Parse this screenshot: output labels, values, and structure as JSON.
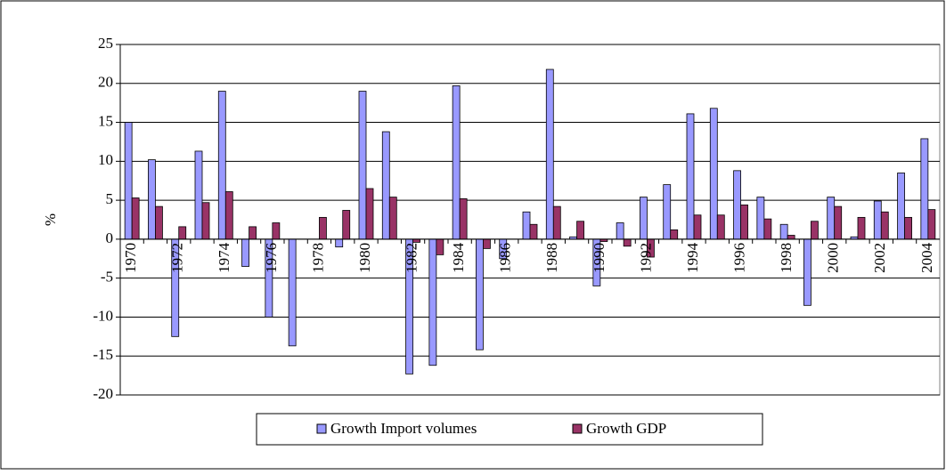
{
  "chart_data": {
    "type": "bar",
    "y_label": "%",
    "categories": [
      "1970",
      null,
      "1972",
      null,
      "1974",
      null,
      "1976",
      null,
      "1978",
      null,
      "1980",
      null,
      "1982",
      null,
      "1984",
      null,
      "1986",
      null,
      "1988",
      null,
      "1990",
      null,
      "1992",
      null,
      "1994",
      null,
      "1996",
      null,
      "1998",
      null,
      "2000",
      null,
      "2002",
      null,
      "2004"
    ],
    "series": [
      {
        "name": "Growth Import volumes",
        "color": "#9999ff",
        "values": [
          15,
          10.2,
          -12.5,
          11.3,
          19,
          -3.5,
          -10,
          -13.7,
          0,
          -1,
          19,
          13.8,
          -17.3,
          -16.2,
          19.7,
          -14.2,
          -2.5,
          3.5,
          21.8,
          0.3,
          -6,
          2.1,
          5.4,
          7,
          16.1,
          16.8,
          8.8,
          5.4,
          1.9,
          -8.5,
          5.4,
          0.3,
          4.9,
          8.5,
          12.9
        ]
      },
      {
        "name": "Growth GDP",
        "color": "#993366",
        "values": [
          5.3,
          4.2,
          1.6,
          4.7,
          6.1,
          1.6,
          2.1,
          0,
          2.8,
          3.7,
          6.5,
          5.4,
          -0.4,
          -2,
          5.2,
          -1.2,
          0,
          1.9,
          4.2,
          2.3,
          -0.3,
          -0.9,
          -2.3,
          1.2,
          3.1,
          3.1,
          4.4,
          2.6,
          0.5,
          2.3,
          4.2,
          2.8,
          3.5,
          2.8,
          3.8
        ]
      }
    ],
    "ylim": [
      -20,
      25
    ],
    "yticks": [
      -20,
      -15,
      -10,
      -5,
      0,
      5,
      10,
      15,
      20,
      25
    ],
    "grid": true,
    "legend": "bottom"
  }
}
